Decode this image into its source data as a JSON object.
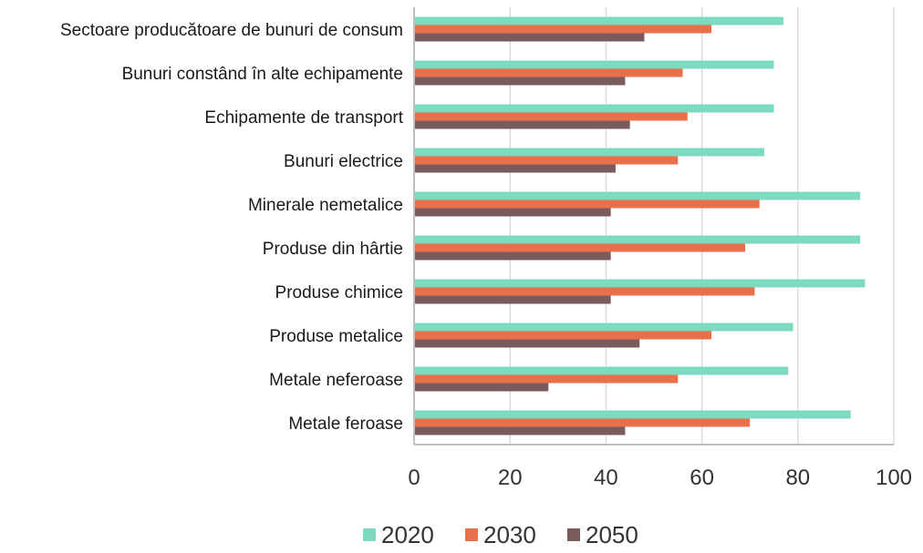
{
  "chart_data": {
    "type": "bar",
    "orientation": "horizontal",
    "categories": [
      "Sectoare producătoare de bunuri de consum",
      "Bunuri constând în alte echipamente",
      "Echipamente de transport",
      "Bunuri electrice",
      "Minerale nemetalice",
      "Produse din hârtie",
      "Produse chimice",
      "Produse metalice",
      "Metale neferoase",
      "Metale feroase"
    ],
    "series": [
      {
        "name": "2020",
        "color": "#7dd9c0",
        "values": [
          77,
          75,
          75,
          73,
          93,
          93,
          94,
          79,
          78,
          91
        ]
      },
      {
        "name": "2030",
        "color": "#e8704a",
        "values": [
          62,
          56,
          57,
          55,
          72,
          69,
          71,
          62,
          55,
          70
        ]
      },
      {
        "name": "2050",
        "color": "#7a5c5c",
        "values": [
          48,
          44,
          45,
          42,
          41,
          41,
          41,
          47,
          28,
          44
        ]
      }
    ],
    "xticks": [
      "0",
      "20",
      "40",
      "60",
      "80",
      "100"
    ],
    "xlim": [
      0,
      100
    ],
    "grid": "vertical",
    "legend_position": "bottom",
    "title": "",
    "xlabel": "",
    "ylabel": ""
  }
}
